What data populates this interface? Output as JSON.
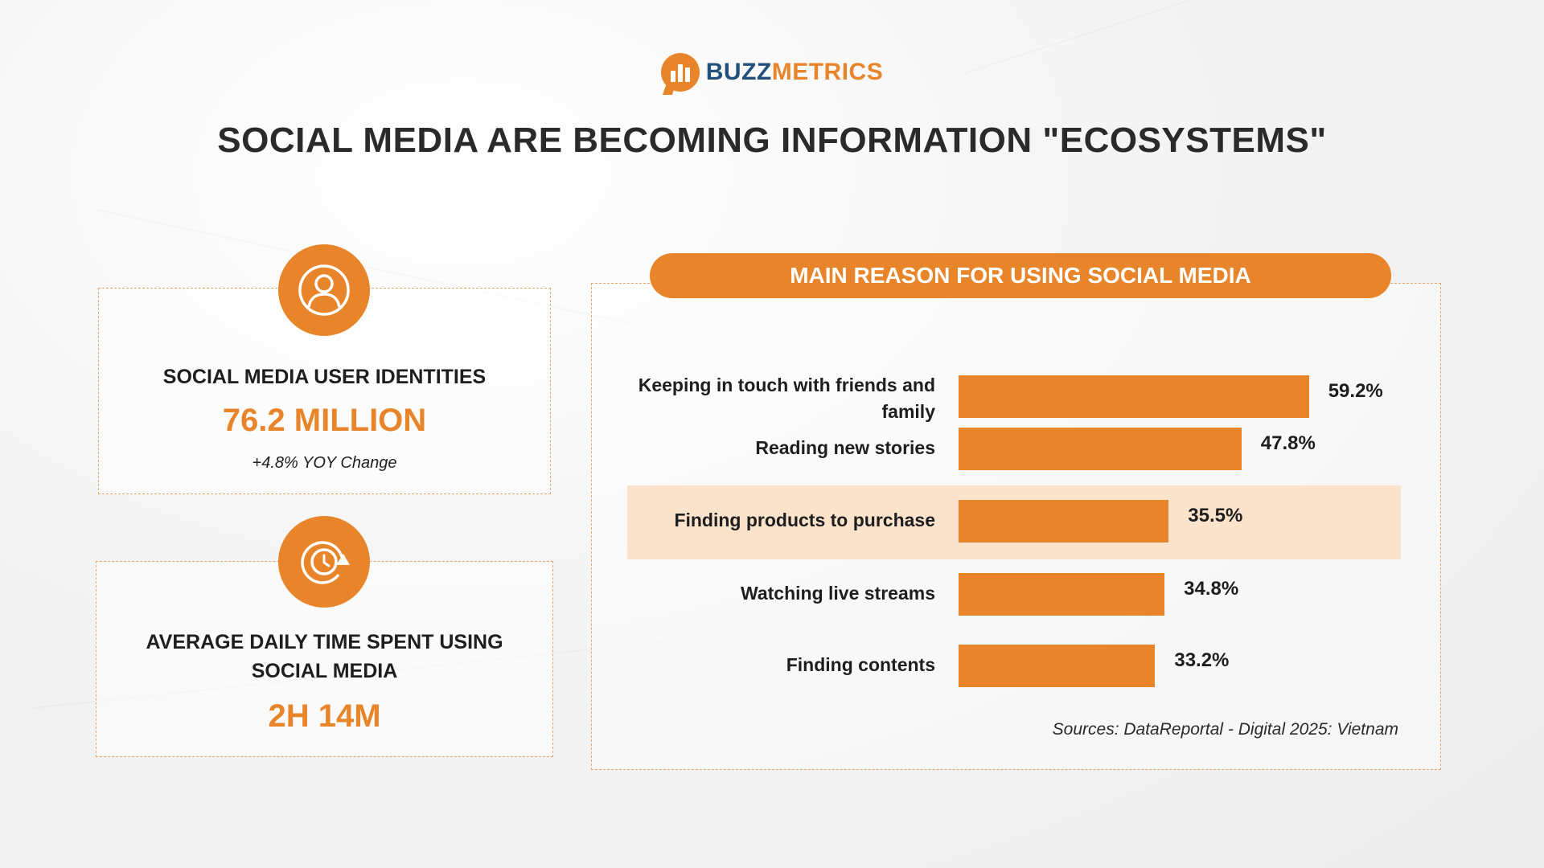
{
  "brand": {
    "part_a": "BUZZ",
    "part_b": "METRICS"
  },
  "headline": "SOCIAL MEDIA ARE BECOMING INFORMATION \"ECOSYSTEMS\"",
  "stats": {
    "users": {
      "icon": "user-icon",
      "label": "SOCIAL MEDIA USER IDENTITIES",
      "value": "76.2 MILLION",
      "note": "+4.8% YOY Change"
    },
    "time": {
      "icon": "clock-icon",
      "label_line1": "AVERAGE DAILY TIME SPENT USING",
      "label_line2": "SOCIAL MEDIA",
      "value": "2H 14M"
    }
  },
  "colors": {
    "accent": "#e8852a",
    "highlight": "#fbe3cc",
    "brand_dark": "#23507a"
  },
  "chart_data": {
    "type": "bar",
    "orientation": "horizontal",
    "title": "MAIN REASON FOR USING SOCIAL MEDIA",
    "categories": [
      "Keeping in touch with friends and family",
      "Reading new stories",
      "Finding products to purchase",
      "Watching live streams",
      "Finding contents"
    ],
    "values": [
      59.2,
      47.8,
      35.5,
      34.8,
      33.2
    ],
    "value_labels": [
      "59.2%",
      "47.8%",
      "35.5%",
      "34.8%",
      "33.2%"
    ],
    "highlighted_category": "Finding products to purchase",
    "xlim": [
      0,
      60
    ],
    "grid": false,
    "legend": "none"
  },
  "source": "Sources: DataReportal - Digital 2025: Vietnam"
}
